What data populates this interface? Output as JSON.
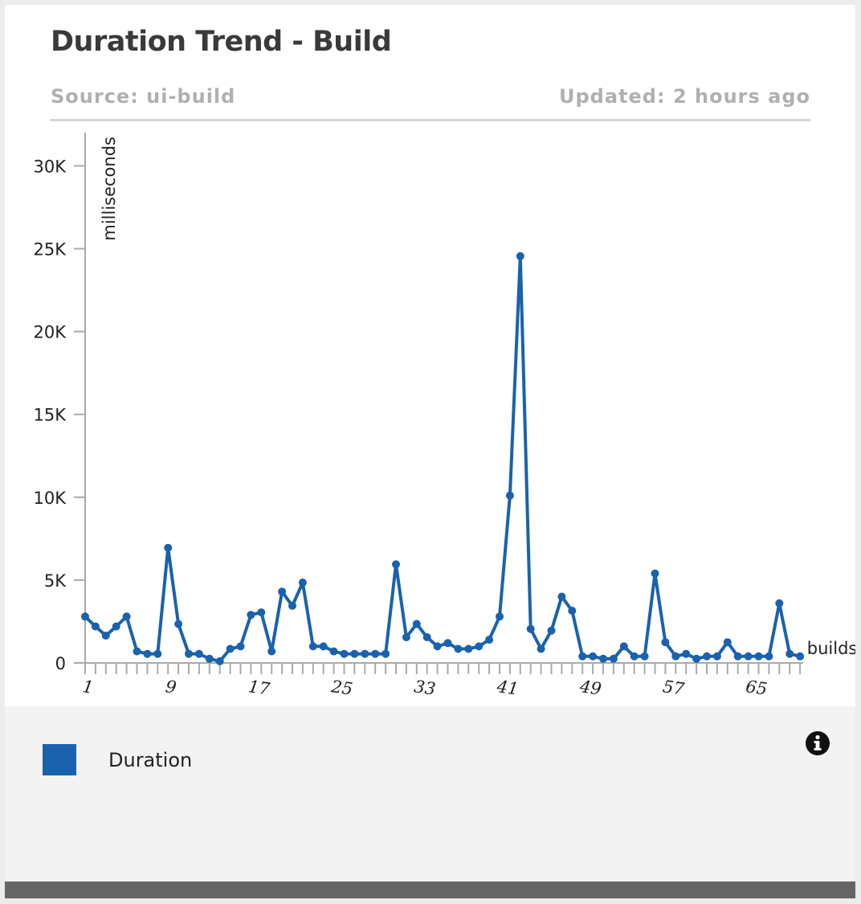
{
  "header": {
    "title": "Duration Trend - Build",
    "source": "Source: ui-build",
    "updated": "Updated: 2 hours ago"
  },
  "legend": {
    "label": "Duration",
    "info_icon": "info-icon"
  },
  "colors": {
    "series": "#1a62ad",
    "axis": "#aaaaaa",
    "legend_bg": "#f3f3f3",
    "bottom_bar": "#666666"
  },
  "chart_data": {
    "type": "line",
    "title": "Duration Trend - Build",
    "xlabel": "builds",
    "ylabel": "milliseconds",
    "ylim": [
      0,
      32000
    ],
    "xlim": [
      1,
      70
    ],
    "y_ticks": [
      {
        "value": 0,
        "label": "0"
      },
      {
        "value": 5000,
        "label": "5K"
      },
      {
        "value": 10000,
        "label": "10K"
      },
      {
        "value": 15000,
        "label": "15K"
      },
      {
        "value": 20000,
        "label": "20K"
      },
      {
        "value": 25000,
        "label": "25K"
      },
      {
        "value": 30000,
        "label": "30K"
      }
    ],
    "x_tick_labels": [
      "1",
      "9",
      "17",
      "25",
      "33",
      "41",
      "49",
      "57",
      "65"
    ],
    "x": [
      1,
      2,
      3,
      4,
      5,
      6,
      7,
      8,
      9,
      10,
      11,
      12,
      13,
      14,
      15,
      16,
      17,
      18,
      19,
      20,
      21,
      22,
      23,
      24,
      25,
      26,
      27,
      28,
      29,
      30,
      31,
      32,
      33,
      34,
      35,
      36,
      37,
      38,
      39,
      40,
      41,
      42,
      43,
      44,
      45,
      46,
      47,
      48,
      49,
      50,
      51,
      52,
      53,
      54,
      55,
      56,
      57,
      58,
      59,
      60,
      61,
      62,
      63,
      64,
      65,
      66,
      67,
      68,
      69,
      70
    ],
    "series": [
      {
        "name": "Duration",
        "values": [
          2800,
          2200,
          1650,
          2200,
          2800,
          700,
          550,
          550,
          6950,
          2350,
          550,
          550,
          250,
          100,
          850,
          1000,
          2900,
          3050,
          700,
          4300,
          3450,
          4850,
          1000,
          1000,
          700,
          550,
          550,
          550,
          550,
          550,
          5950,
          1550,
          2350,
          1550,
          1000,
          1200,
          850,
          850,
          1000,
          1400,
          2800,
          10100,
          24550,
          2050,
          850,
          1950,
          4000,
          3150,
          400,
          400,
          250,
          250,
          1000,
          400,
          400,
          5400,
          1250,
          400,
          550,
          250,
          400,
          400,
          1250,
          400,
          400,
          400,
          400,
          3600,
          550,
          400
        ]
      }
    ],
    "grid": false,
    "legend_position": "bottom"
  }
}
